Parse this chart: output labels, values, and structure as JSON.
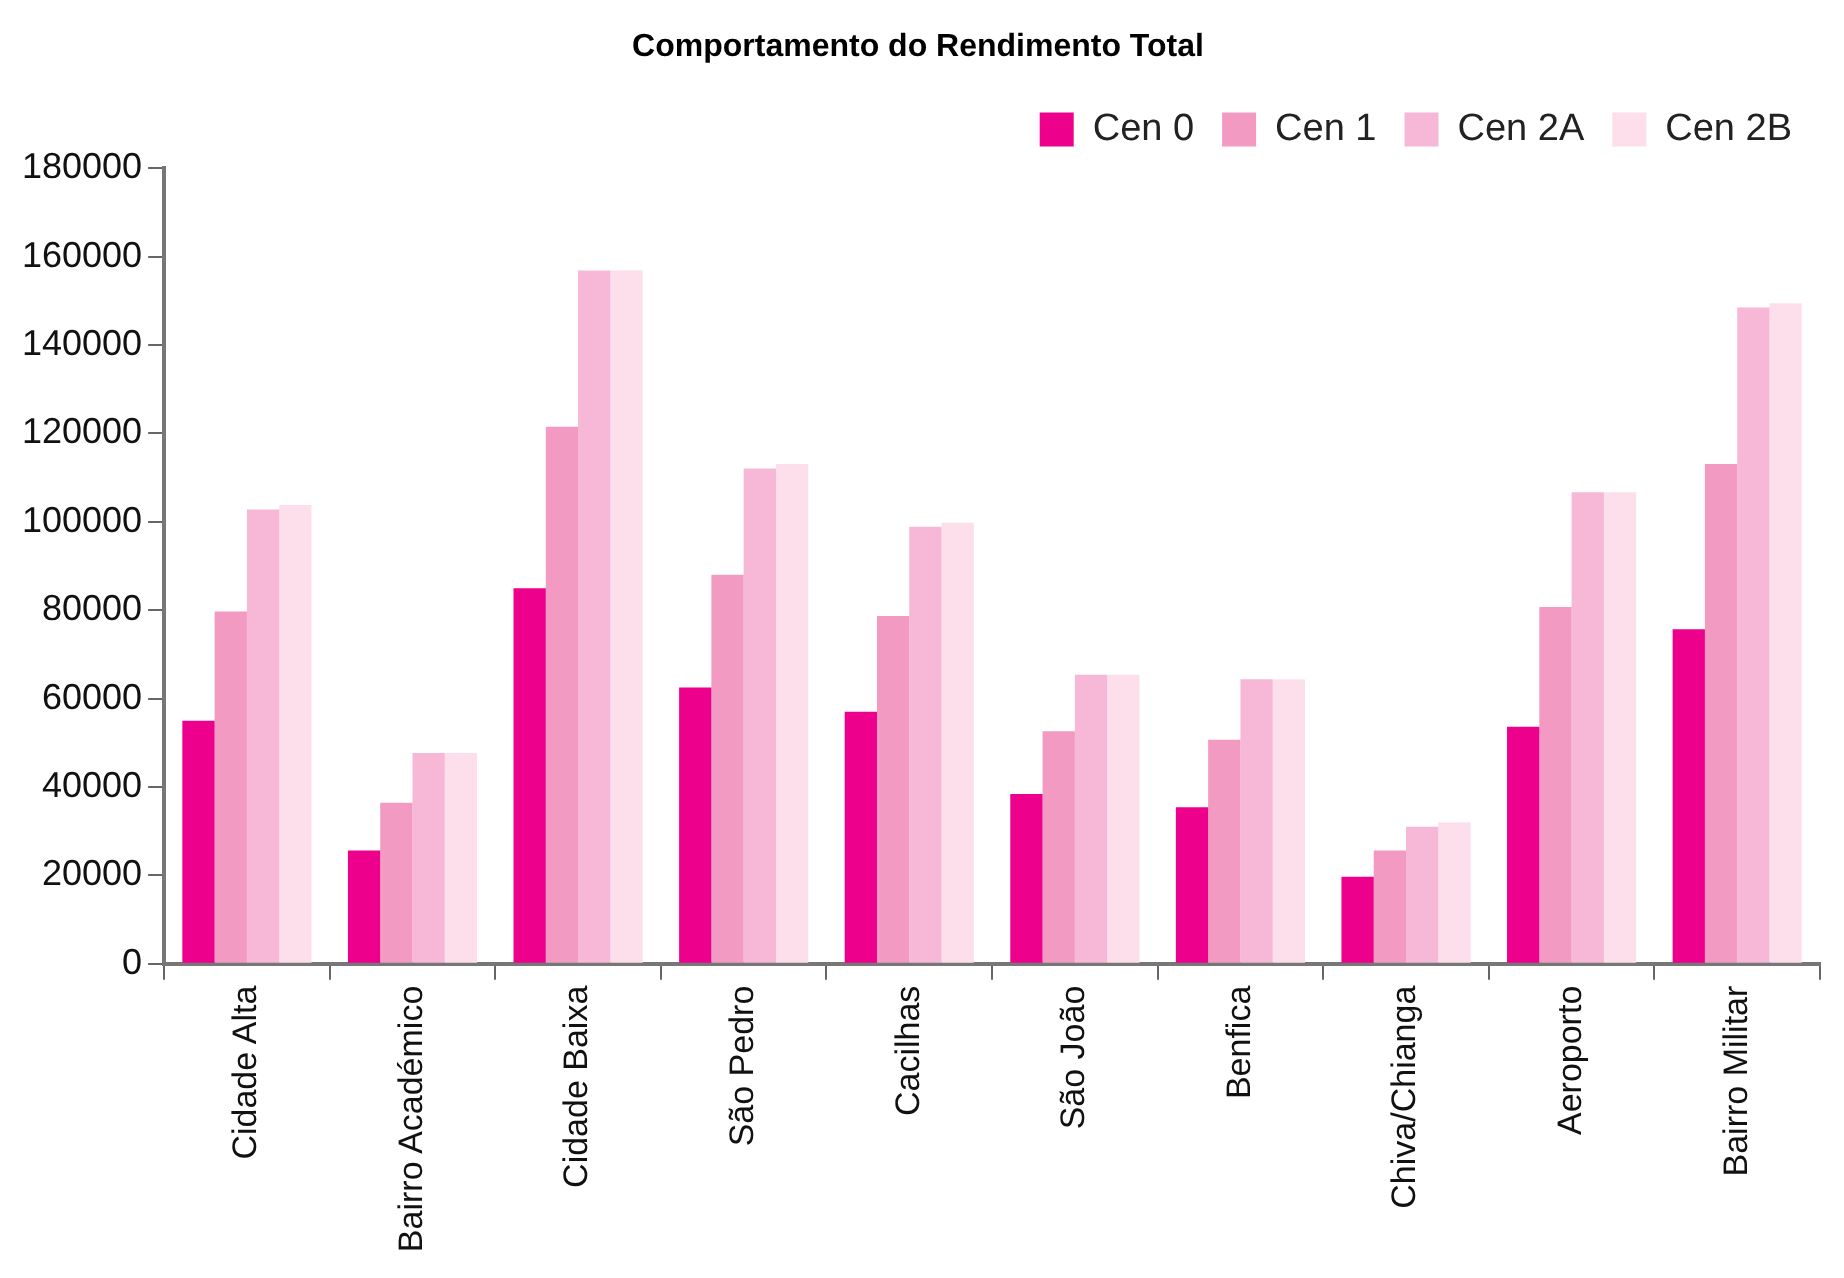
{
  "chart_data": {
    "type": "bar",
    "title": "Comportamento do Rendimento Total",
    "categories": [
      "Cidade Alta",
      "Bairro Académico",
      "Cidade Baixa",
      "São Pedro",
      "Cacilhas",
      "São João",
      "Benfica",
      "Chiva/Chianga",
      "Aeroporto",
      "Bairro Militar"
    ],
    "series": [
      {
        "name": "Cen 0",
        "color": "#ec008c",
        "values": [
          55000,
          25600,
          85000,
          62500,
          57000,
          38400,
          35400,
          19700,
          53600,
          75700
        ]
      },
      {
        "name": "Cen 1",
        "color": "#f39ac2",
        "values": [
          79700,
          36400,
          121500,
          88000,
          78700,
          52600,
          50700,
          25600,
          80700,
          113100
        ]
      },
      {
        "name": "Cen 2A",
        "color": "#f6b8d6",
        "values": [
          102800,
          47700,
          156900,
          112100,
          98900,
          65400,
          64400,
          31000,
          106700,
          148500
        ]
      },
      {
        "name": "Cen 2B",
        "color": "#fcdfeb",
        "values": [
          103800,
          47700,
          156900,
          113100,
          99800,
          65400,
          64400,
          32000,
          106700,
          149500
        ]
      }
    ],
    "ylim": [
      0,
      180000
    ],
    "yticks": [
      0,
      20000,
      40000,
      60000,
      80000,
      100000,
      120000,
      140000,
      160000,
      180000
    ],
    "grid": false,
    "legend": "top right"
  }
}
